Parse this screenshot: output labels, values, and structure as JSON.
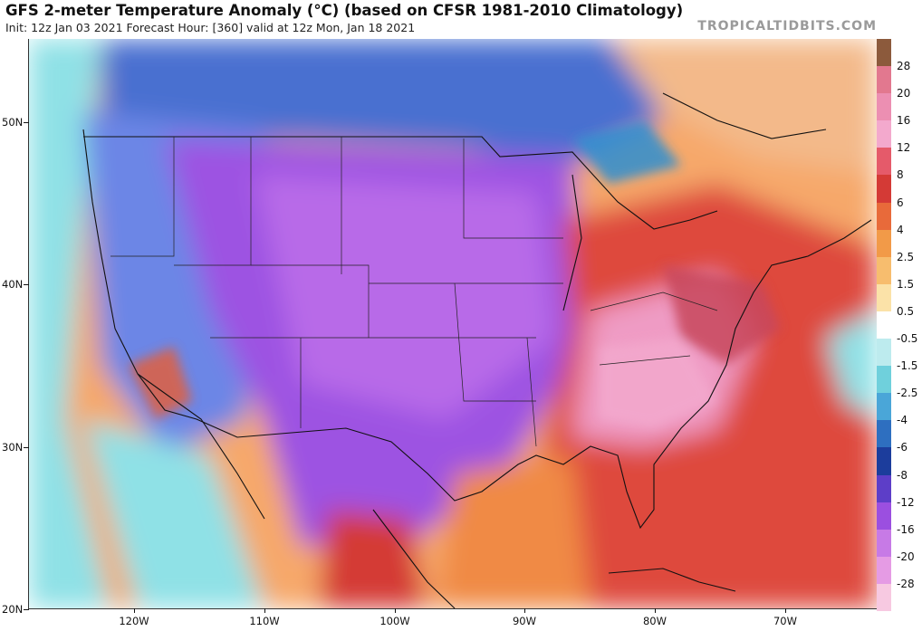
{
  "header": {
    "title": "GFS 2-meter Temperature Anomaly (°C) (based on CFSR 1981-2010 Climatology)",
    "subtitle": "Init: 12z Jan 03 2021   Forecast Hour: [360]   valid at 12z Mon, Jan 18 2021",
    "brand": "TROPICALTIDBITS.COM"
  },
  "map": {
    "lat_labels": [
      "50N",
      "40N",
      "30N",
      "20N"
    ],
    "lon_labels": [
      "120W",
      "110W",
      "100W",
      "90W",
      "80W",
      "70W"
    ]
  },
  "colorbar": {
    "labels": [
      "28",
      "20",
      "16",
      "12",
      "8",
      "6",
      "4",
      "2.5",
      "1.5",
      "0.5",
      "-0.5",
      "-1.5",
      "-2.5",
      "-4",
      "-6",
      "-8",
      "-12",
      "-16",
      "-20",
      "-28"
    ],
    "colors": [
      "#8c5a3c",
      "#e2788f",
      "#ec8fb2",
      "#f3a9cd",
      "#e55a6a",
      "#d43a36",
      "#e86a3a",
      "#f29a48",
      "#f7bd6e",
      "#fbe2a8",
      "#ffffff",
      "#bdebee",
      "#6fd0dc",
      "#4aa6d8",
      "#2e6fc0",
      "#1c3d9c",
      "#5d3ec8",
      "#9b4fe0",
      "#c77ae6",
      "#e59be4",
      "#f7c9e1"
    ]
  }
}
